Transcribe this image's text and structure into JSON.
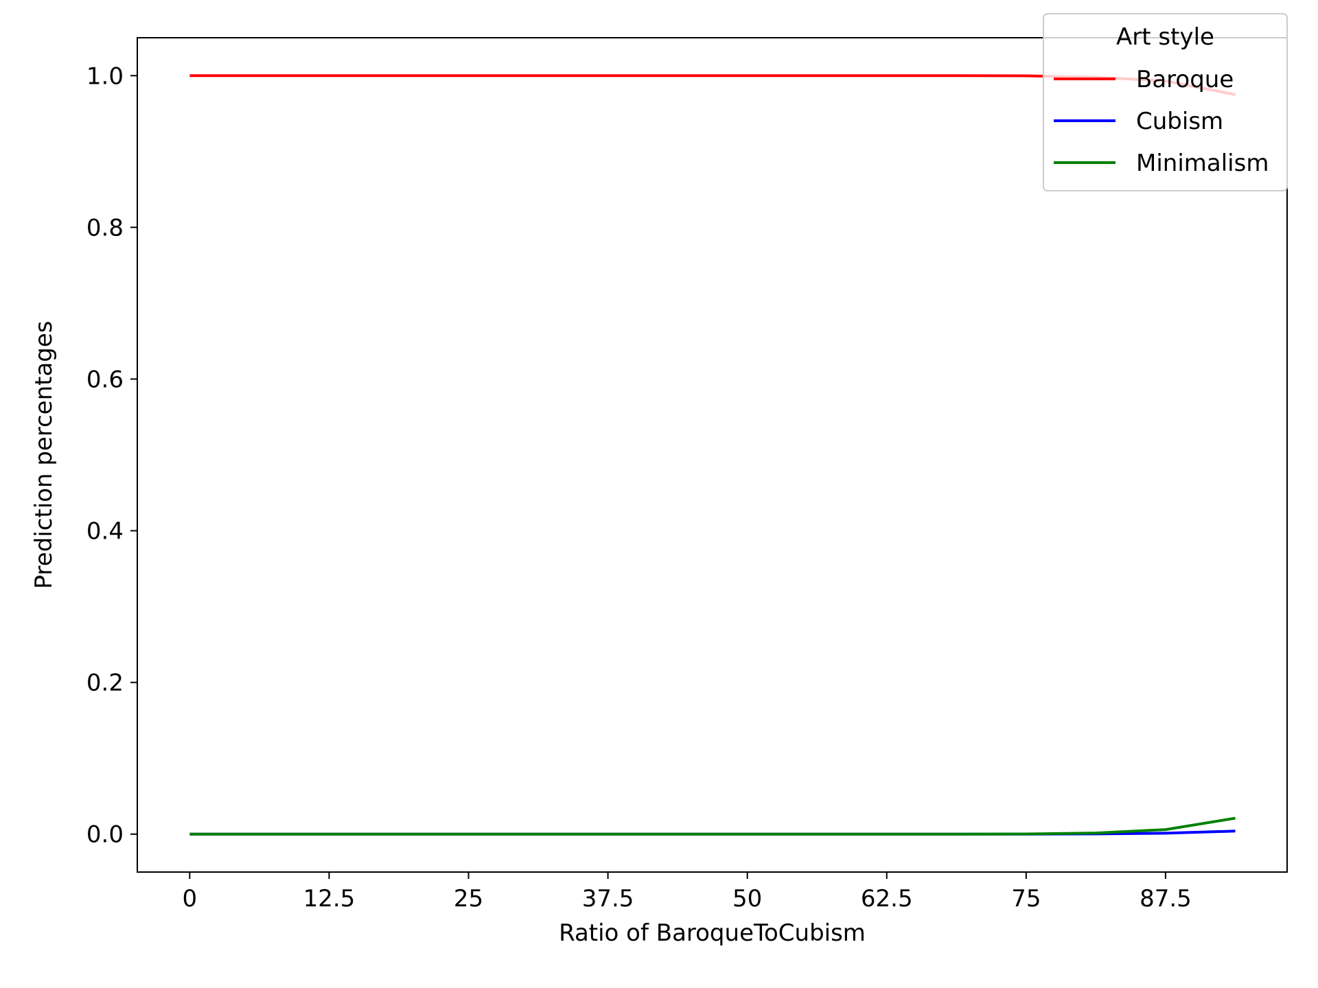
{
  "chart_data": {
    "type": "line",
    "title": "",
    "xlabel": "Ratio of BaroqueToCubism",
    "ylabel": "Prediction percentages",
    "x": [
      0,
      6.25,
      12.5,
      18.75,
      25,
      31.25,
      37.5,
      43.75,
      50,
      56.25,
      62.5,
      68.75,
      75,
      81.25,
      87.5,
      93.75
    ],
    "xticks": [
      0,
      12.5,
      25,
      37.5,
      50,
      62.5,
      75,
      87.5
    ],
    "xtick_labels": [
      "0",
      "12.5",
      "25",
      "37.5",
      "50",
      "62.5",
      "75",
      "87.5"
    ],
    "yticks": [
      0.0,
      0.2,
      0.4,
      0.6,
      0.8,
      1.0
    ],
    "ytick_labels": [
      "0.0",
      "0.2",
      "0.4",
      "0.6",
      "0.8",
      "1.0"
    ],
    "xlim": [
      -4.7,
      98.4
    ],
    "ylim": [
      -0.05,
      1.05
    ],
    "grid": false,
    "legend": {
      "title": "Art style",
      "position": "top-right"
    },
    "series": [
      {
        "name": "Baroque",
        "color": "#ff0000",
        "values": [
          1.0,
          1.0,
          1.0,
          1.0,
          1.0,
          1.0,
          1.0,
          1.0,
          1.0,
          1.0,
          1.0,
          1.0,
          0.9998,
          0.998,
          0.993,
          0.975
        ]
      },
      {
        "name": "Cubism",
        "color": "#0000ff",
        "values": [
          0.0,
          0.0,
          0.0,
          0.0,
          0.0,
          0.0,
          0.0,
          0.0,
          0.0,
          0.0,
          0.0,
          0.0,
          0.0,
          0.0003,
          0.0012,
          0.004
        ]
      },
      {
        "name": "Minimalism",
        "color": "#008000",
        "values": [
          0.0,
          0.0,
          0.0,
          0.0,
          0.0,
          0.0,
          0.0,
          0.0,
          0.0,
          0.0,
          0.0,
          0.0,
          0.0002,
          0.0015,
          0.006,
          0.021
        ]
      }
    ]
  }
}
